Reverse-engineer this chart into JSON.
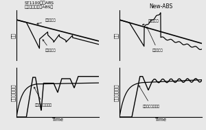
{
  "title_left": "ST1100搭載ABS\n（ソレノイド型ABS）",
  "title_right": "New-ABS",
  "ylabel_speed": "速度",
  "ylabel_pressure": "キャリパ液圧",
  "xlabel": "Time",
  "label_body_speed": "車体の速度",
  "label_wheel_speed": "車輪の速度",
  "label_ideal": "理想的なかけかた",
  "bg_color": "#e8e8e8",
  "line_color": "#000000"
}
